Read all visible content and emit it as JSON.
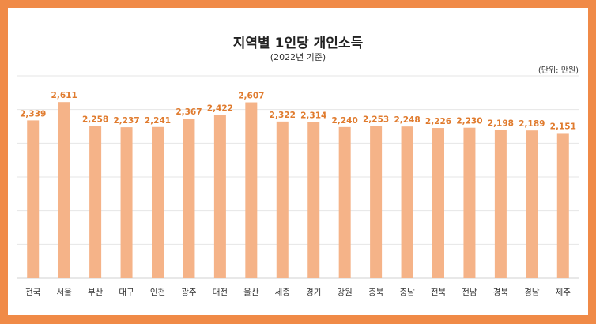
{
  "title": "지역별 1인당 개인소득",
  "subtitle": "(2022년 기준)",
  "unit": "(단위: 만원)",
  "colors": {
    "frame": "#F08A47",
    "bar": "#F5B388",
    "label": "#E07B2E",
    "grid": "#E6E6E6"
  },
  "chart_data": {
    "type": "bar",
    "title": "지역별 1인당 개인소득",
    "subtitle": "(2022년 기준)",
    "unit": "(단위: 만원)",
    "categories": [
      "전국",
      "서울",
      "부산",
      "대구",
      "인천",
      "광주",
      "대전",
      "울산",
      "세종",
      "경기",
      "강원",
      "충북",
      "충남",
      "전북",
      "전남",
      "경북",
      "경남",
      "제주"
    ],
    "values": [
      2339,
      2611,
      2258,
      2237,
      2241,
      2367,
      2422,
      2607,
      2322,
      2314,
      2240,
      2253,
      2248,
      2226,
      2230,
      2198,
      2189,
      2151
    ],
    "labels": [
      "2,339",
      "2,611",
      "2,258",
      "2,237",
      "2,241",
      "2,367",
      "2,422",
      "2,607",
      "2,322",
      "2,314",
      "2,240",
      "2,253",
      "2,248",
      "2,226",
      "2,230",
      "2,198",
      "2,189",
      "2,151"
    ],
    "ylim": [
      0,
      3000
    ],
    "grid": true,
    "legend": "none"
  }
}
